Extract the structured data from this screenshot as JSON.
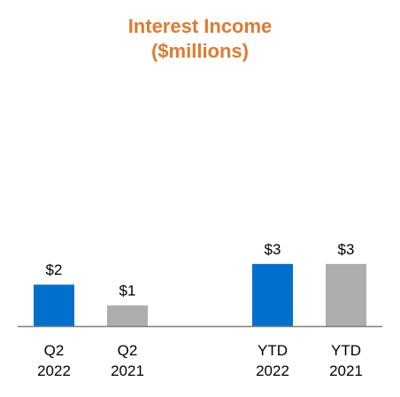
{
  "chart_data": {
    "type": "bar",
    "title_line1": "Interest Income",
    "title_line2": "($millions)",
    "categories": [
      {
        "line1": "Q2",
        "line2": "2022"
      },
      {
        "line1": "Q2",
        "line2": "2021"
      },
      {
        "line1": "YTD",
        "line2": "2022"
      },
      {
        "line1": "YTD",
        "line2": "2021"
      }
    ],
    "values": [
      2,
      1,
      3,
      3
    ],
    "value_labels": [
      "$2",
      "$1",
      "$3",
      "$3"
    ],
    "bar_colors": [
      "#0070CC",
      "#ADADAD",
      "#0070CC",
      "#ADADAD"
    ],
    "axis_color": "#7F7F7F",
    "title_color": "#E07A2E",
    "ylim": [
      0,
      3.25
    ],
    "grid": false,
    "legend": "none"
  }
}
